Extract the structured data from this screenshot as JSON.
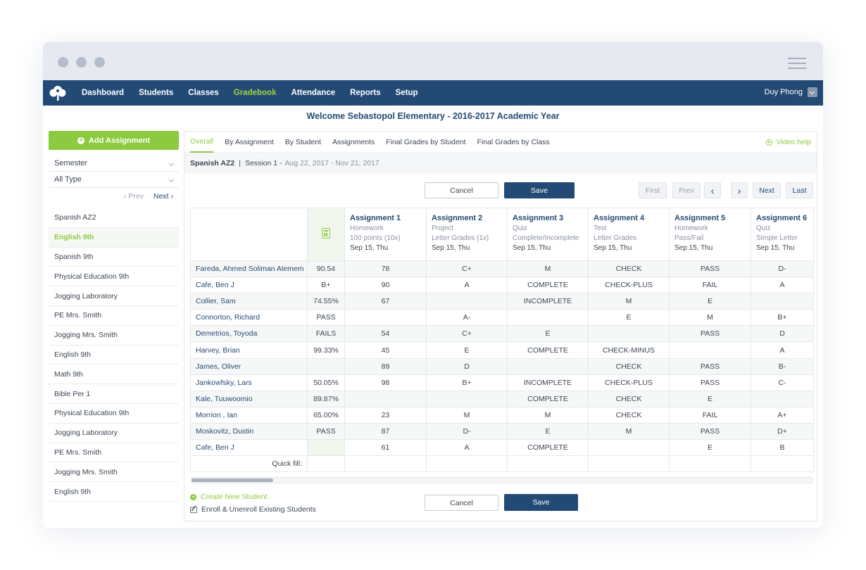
{
  "nav": {
    "items": [
      {
        "label": "Dashboard"
      },
      {
        "label": "Students"
      },
      {
        "label": "Classes"
      },
      {
        "label": "Gradebook",
        "active": true
      },
      {
        "label": "Attendance"
      },
      {
        "label": "Reports"
      },
      {
        "label": "Setup"
      }
    ],
    "user": "Duy Phong"
  },
  "welcome": "Welcome Sebastopol Elementary  -  2016-2017 Academic Year",
  "sidebar": {
    "add_label": "Add Assignment",
    "filter_semester": "Semester",
    "filter_type": "All Type",
    "prev": "‹  Prev",
    "next": "Next ›",
    "classes": [
      "Spanish AZ2",
      "English 9th",
      "Spanish 9th",
      "Physical Education 9th",
      "Jogging Laboratory",
      "PE Mrs. Smith",
      "Jogging Mrs. Smith",
      "English 9th",
      "Math 9th",
      "Bible Per 1",
      "Physical Education 9th",
      "Jogging Laboratory",
      "PE Mrs. Smith",
      "Jogging Mrs. Smith",
      "English 9th"
    ],
    "active_index": 1
  },
  "tabs": [
    "Overall",
    "By Assignment",
    "By Student",
    "Assignments",
    "Final Grades by Student",
    "Final Grades by Class"
  ],
  "video_help": "Video help",
  "session": {
    "class": "Spanish AZ2",
    "sep": "|",
    "label": "Session 1 -",
    "dates": "Aug 22, 2017 - Nov 21, 2017"
  },
  "buttons": {
    "cancel": "Cancel",
    "save": "Save"
  },
  "pager": {
    "first": "First",
    "prev": "Prev",
    "left": "‹",
    "right": "›",
    "next": "Next",
    "last": "Last"
  },
  "assignments": [
    {
      "title": "Assignment 1",
      "type": "Homework",
      "scale": "100 points (10x)",
      "date": "Sep 15, Thu"
    },
    {
      "title": "Assignment 2",
      "type": "Project",
      "scale": "Letter Grades (1x)",
      "date": "Sep 15, Thu"
    },
    {
      "title": "Assignment 3",
      "type": "Quiz",
      "scale": "Complete/Incomplete",
      "date": "Sep 15, Thu"
    },
    {
      "title": "Assignment 4",
      "type": "Test",
      "scale": "Letter Grades",
      "date": "Sep 15, Thu"
    },
    {
      "title": "Assignment 5",
      "type": "Homework",
      "scale": "Pass/Fail",
      "date": "Sep 15, Thu"
    },
    {
      "title": "Assignment 6",
      "type": "Quiz",
      "scale": "Simple Letter",
      "date": "Sep 15, Thu"
    }
  ],
  "students": [
    {
      "name": "Fareda, Ahmed Soliman Alemem",
      "avg": "90.54",
      "grades": [
        "78",
        "C+",
        "M",
        "CHECK",
        "PASS",
        "D-"
      ]
    },
    {
      "name": "Cafe, Ben J",
      "avg": "B+",
      "grades": [
        "90",
        "A",
        "COMPLETE",
        "CHECK-PLUS",
        "FAIL",
        "A"
      ]
    },
    {
      "name": "Collier, Sam",
      "avg": "74.55%",
      "grades": [
        "67",
        "",
        "INCOMPLETE",
        "M",
        "E",
        ""
      ]
    },
    {
      "name": "Connorton, Richard",
      "avg": "PASS",
      "grades": [
        "",
        "A-",
        "",
        "E",
        "M",
        "B+"
      ]
    },
    {
      "name": "Demetrios, Toyoda",
      "avg": "FAILS",
      "grades": [
        "54",
        "C+",
        "E",
        "",
        "PASS",
        "D"
      ]
    },
    {
      "name": "Harvey, Brian",
      "avg": "99.33%",
      "grades": [
        "45",
        "E",
        "COMPLETE",
        "CHECK-MINUS",
        "",
        "A"
      ]
    },
    {
      "name": "James, Oliver",
      "avg": "",
      "grades": [
        "89",
        "D",
        "",
        "CHECK",
        "PASS",
        "B-"
      ]
    },
    {
      "name": "Jankowfsky, Lars",
      "avg": "50.05%",
      "grades": [
        "98",
        "B+",
        "INCOMPLETE",
        "CHECK-PLUS",
        "PASS",
        "C-"
      ]
    },
    {
      "name": "Kale, Tuuwoomio",
      "avg": "89.87%",
      "grades": [
        "",
        "",
        "COMPLETE",
        "CHECK",
        "E",
        ""
      ]
    },
    {
      "name": "Morrion , Ian",
      "avg": "65.00%",
      "grades": [
        "23",
        "M",
        "M",
        "CHECK",
        "FAIL",
        "A+"
      ]
    },
    {
      "name": "Moskovitz, Dustin",
      "avg": "PASS",
      "grades": [
        "87",
        "D-",
        "E",
        "M",
        "PASS",
        "D+"
      ]
    },
    {
      "name": "Cafe, Ben J",
      "avg": "",
      "grades": [
        "61",
        "A",
        "COMPLETE",
        "",
        "E",
        "B"
      ]
    }
  ],
  "quick_fill": "Quick fill:",
  "links": {
    "create": "Create New Student",
    "enroll": "Enroll & Unenroll Existing Students"
  }
}
